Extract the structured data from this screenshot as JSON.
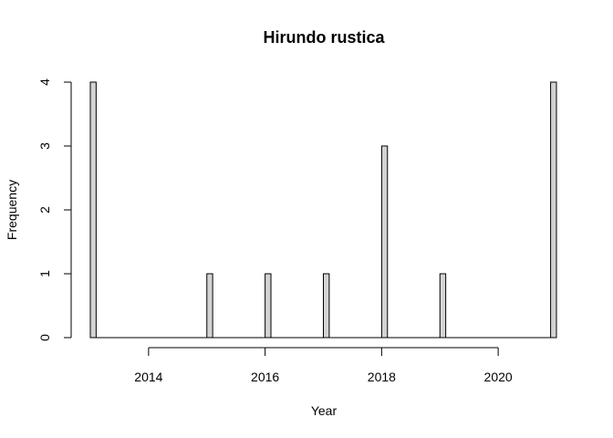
{
  "chart_data": {
    "type": "bar",
    "title": "Hirundo rustica",
    "xlabel": "Year",
    "ylabel": "Frequency",
    "bar_fill": "#d3d3d3",
    "xlim": [
      2013,
      2021
    ],
    "ylim": [
      0,
      4
    ],
    "x_ticks": [
      2014,
      2016,
      2018,
      2020
    ],
    "y_ticks": [
      0,
      1,
      2,
      3,
      4
    ],
    "bin_width": 0.1,
    "bars": [
      {
        "x": 2013.0,
        "value": 4
      },
      {
        "x": 2015.0,
        "value": 1
      },
      {
        "x": 2016.0,
        "value": 1
      },
      {
        "x": 2017.0,
        "value": 1
      },
      {
        "x": 2018.0,
        "value": 3
      },
      {
        "x": 2019.0,
        "value": 1
      },
      {
        "x": 2021.0,
        "value": 4
      }
    ],
    "grid": false,
    "legend": "none"
  }
}
